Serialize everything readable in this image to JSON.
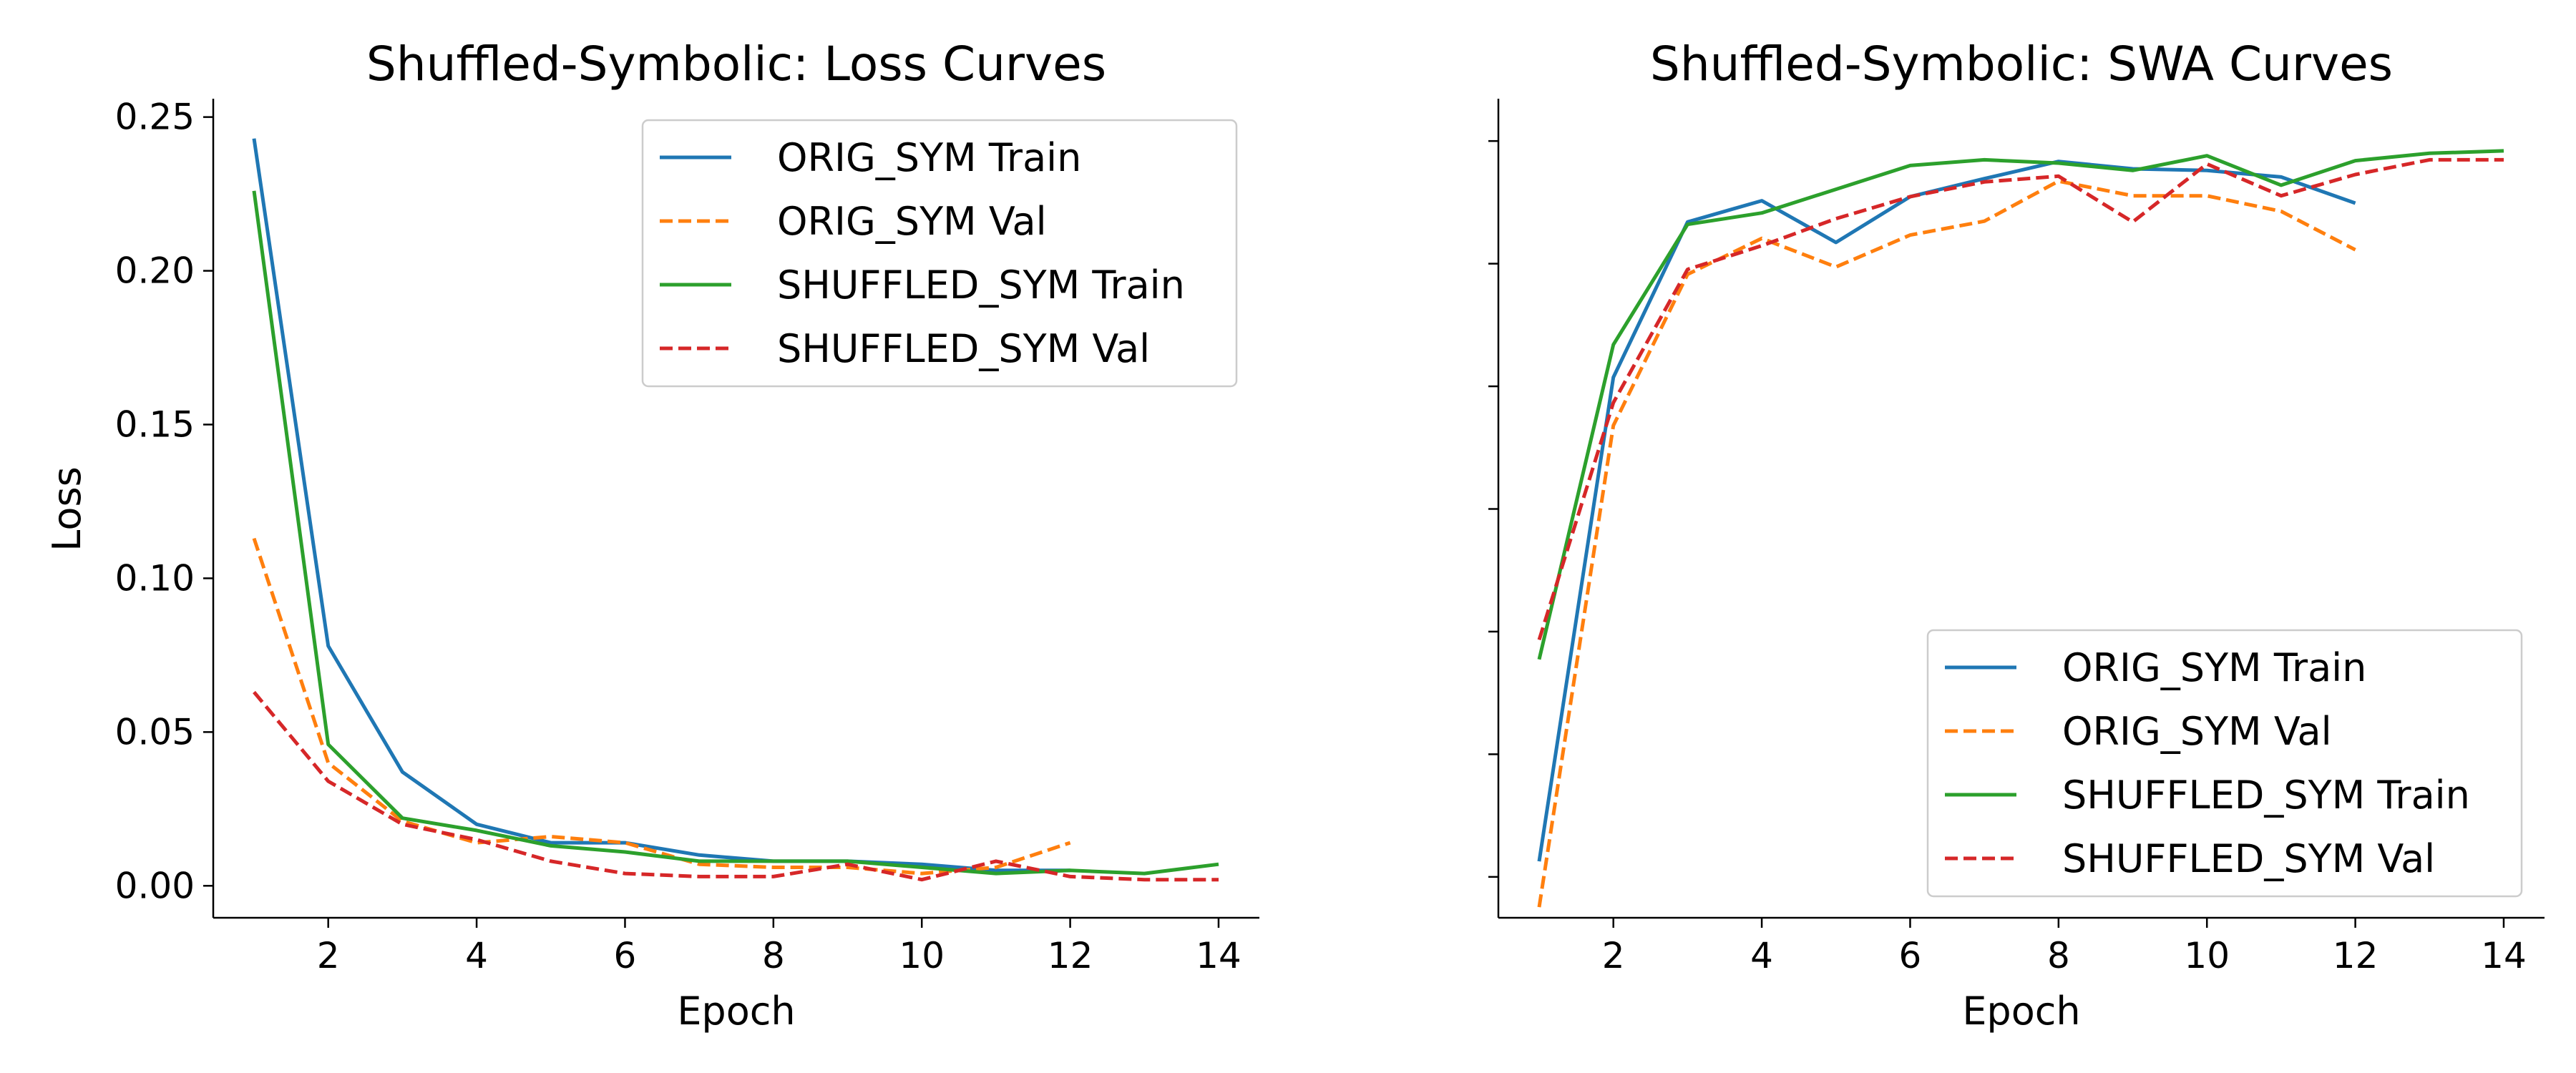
{
  "chart_data": [
    {
      "type": "line",
      "title": "Shuffled-Symbolic: Loss Curves",
      "xlabel": "Epoch",
      "ylabel": "Loss",
      "xlim": [
        0.45,
        14.55
      ],
      "ylim": [
        -0.0104,
        0.2555
      ],
      "xticks": [
        2,
        4,
        6,
        8,
        10,
        12,
        14
      ],
      "yticks": [
        0.0,
        0.05,
        0.1,
        0.15,
        0.2,
        0.25
      ],
      "xtick_labels": [
        "2",
        "4",
        "6",
        "8",
        "10",
        "12",
        "14"
      ],
      "ytick_labels": [
        "0.00",
        "0.05",
        "0.10",
        "0.15",
        "0.20",
        "0.25"
      ],
      "grid": false,
      "legend": "upper right",
      "series": [
        {
          "name": "ORIG_SYM Train",
          "color": "#1f77b4",
          "dash": "solid",
          "x": [
            1,
            2,
            3,
            4,
            5,
            6,
            7,
            8,
            9,
            10,
            11,
            12
          ],
          "y": [
            0.243,
            0.078,
            0.037,
            0.02,
            0.014,
            0.014,
            0.01,
            0.008,
            0.008,
            0.007,
            0.005,
            0.005
          ]
        },
        {
          "name": "ORIG_SYM Val",
          "color": "#ff7f0e",
          "dash": "dashed",
          "x": [
            1,
            2,
            3,
            4,
            5,
            6,
            7,
            8,
            9,
            10,
            11,
            12
          ],
          "y": [
            0.113,
            0.04,
            0.021,
            0.014,
            0.016,
            0.014,
            0.007,
            0.006,
            0.006,
            0.004,
            0.006,
            0.014
          ]
        },
        {
          "name": "SHUFFLED_SYM Train",
          "color": "#2ca02c",
          "dash": "solid",
          "x": [
            1,
            2,
            3,
            4,
            5,
            6,
            7,
            8,
            9,
            10,
            11,
            12,
            13,
            14
          ],
          "y": [
            0.226,
            0.046,
            0.022,
            0.018,
            0.013,
            0.011,
            0.008,
            0.008,
            0.008,
            0.006,
            0.004,
            0.005,
            0.004,
            0.007
          ]
        },
        {
          "name": "SHUFFLED_SYM Val",
          "color": "#d62728",
          "dash": "dashed",
          "x": [
            1,
            2,
            3,
            4,
            5,
            6,
            7,
            8,
            9,
            10,
            11,
            12,
            13,
            14
          ],
          "y": [
            0.063,
            0.034,
            0.02,
            0.015,
            0.008,
            0.004,
            0.003,
            0.003,
            0.007,
            0.002,
            0.008,
            0.003,
            0.002,
            0.002
          ]
        }
      ]
    },
    {
      "type": "line",
      "title": "Shuffled-Symbolic: SWA Curves",
      "xlabel": "Epoch",
      "ylabel": "",
      "xlim": [
        0.45,
        14.55
      ],
      "ylim": [
        0.0,
        1.0
      ],
      "xticks": [
        2,
        4,
        6,
        8,
        10,
        12,
        14
      ],
      "yticks": [
        0.05,
        0.2,
        0.35,
        0.5,
        0.65,
        0.8,
        0.95
      ],
      "xtick_labels": [
        "2",
        "4",
        "6",
        "8",
        "10",
        "12",
        "14"
      ],
      "ytick_labels": [
        "",
        "",
        "",
        "",
        "",
        "",
        ""
      ],
      "grid": false,
      "legend": "lower right",
      "series": [
        {
          "name": "ORIG_SYM Train",
          "color": "#1f77b4",
          "dash": "solid",
          "x": [
            1,
            2,
            3,
            4,
            5,
            6,
            7,
            8,
            9,
            10,
            11,
            12
          ],
          "y": [
            0.069,
            0.661,
            0.851,
            0.877,
            0.826,
            0.882,
            0.904,
            0.925,
            0.916,
            0.914,
            0.906,
            0.874
          ]
        },
        {
          "name": "ORIG_SYM Val",
          "color": "#ff7f0e",
          "dash": "dashed",
          "x": [
            1,
            2,
            3,
            4,
            5,
            6,
            7,
            8,
            9,
            10,
            11,
            12
          ],
          "y": [
            0.013,
            0.602,
            0.787,
            0.831,
            0.796,
            0.835,
            0.852,
            0.901,
            0.883,
            0.883,
            0.864,
            0.817
          ]
        },
        {
          "name": "SHUFFLED_SYM Train",
          "color": "#2ca02c",
          "dash": "solid",
          "x": [
            1,
            2,
            3,
            4,
            5,
            6,
            7,
            8,
            9,
            10,
            11,
            12,
            13,
            14
          ],
          "y": [
            0.316,
            0.701,
            0.848,
            0.862,
            0.891,
            0.92,
            0.927,
            0.923,
            0.914,
            0.932,
            0.896,
            0.926,
            0.935,
            0.938
          ]
        },
        {
          "name": "SHUFFLED_SYM Val",
          "color": "#d62728",
          "dash": "dashed",
          "x": [
            1,
            2,
            3,
            4,
            5,
            6,
            7,
            8,
            9,
            10,
            11,
            12,
            13,
            14
          ],
          "y": [
            0.34,
            0.63,
            0.793,
            0.822,
            0.855,
            0.882,
            0.9,
            0.907,
            0.851,
            0.922,
            0.883,
            0.909,
            0.927,
            0.927
          ]
        }
      ]
    }
  ]
}
